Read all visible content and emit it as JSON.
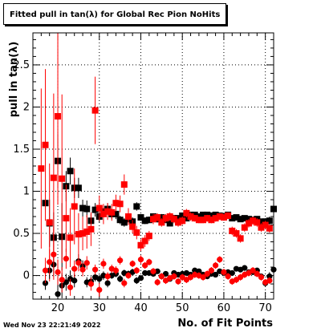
{
  "chart_data": {
    "type": "scatter",
    "title": "Fitted pull in tan(λ) for Global Rec Pion NoHits",
    "xlabel": "No. of Fit Points",
    "ylabel": "pull in tan(λ)",
    "xlim": [
      14,
      72
    ],
    "ylim": [
      -0.28,
      2.88
    ],
    "x_ticks": [
      20,
      30,
      40,
      50,
      60,
      70
    ],
    "y_ticks": [
      0,
      0.5,
      1,
      1.5,
      2,
      2.5
    ],
    "y_tick_labels": [
      "0",
      "0.5",
      "1",
      "1.5",
      "2",
      "2.5"
    ],
    "grid": true,
    "series": [
      {
        "marker": "square",
        "color": "#000000",
        "x": [
          17,
          18,
          19,
          20,
          21,
          22,
          23,
          24,
          25,
          26,
          27,
          28,
          29,
          30,
          31,
          32,
          33,
          34,
          35,
          36,
          37,
          38,
          39,
          40,
          41,
          42,
          43,
          44,
          45,
          46,
          47,
          48,
          49,
          50,
          51,
          52,
          53,
          54,
          55,
          56,
          57,
          58,
          59,
          60,
          61,
          62,
          63,
          64,
          65,
          66,
          67,
          68,
          69,
          70,
          71,
          72
        ],
        "y": [
          0.86,
          0.62,
          0.45,
          1.36,
          0.46,
          1.06,
          1.24,
          1.04,
          1.04,
          0.8,
          0.79,
          0.65,
          0.78,
          0.7,
          0.76,
          0.79,
          0.73,
          0.73,
          0.66,
          0.63,
          0.67,
          0.64,
          0.82,
          0.69,
          0.65,
          0.66,
          0.7,
          0.67,
          0.69,
          0.66,
          0.62,
          0.68,
          0.68,
          0.71,
          0.68,
          0.72,
          0.72,
          0.7,
          0.72,
          0.72,
          0.71,
          0.72,
          0.71,
          0.7,
          0.72,
          0.68,
          0.69,
          0.67,
          0.68,
          0.67,
          0.66,
          0.67,
          0.64,
          0.64,
          0.65,
          0.79
        ],
        "err": [
          0.1,
          0.28,
          0.3,
          0.32,
          0.4,
          0.18,
          0.16,
          0.12,
          0.12,
          0.1,
          0.1,
          0.08,
          0.08,
          0.07,
          0.07,
          0.07,
          0.06,
          0.06,
          0.05,
          0.05,
          0.05,
          0.05,
          0.05,
          0.04,
          0.04,
          0.04,
          0.04,
          0.04,
          0.04,
          0.03,
          0.03,
          0.03,
          0.03,
          0.03,
          0.03,
          0.03,
          0.03,
          0.03,
          0.03,
          0.03,
          0.03,
          0.03,
          0.03,
          0.03,
          0.03,
          0.03,
          0.03,
          0.03,
          0.03,
          0.03,
          0.03,
          0.03,
          0.03,
          0.04,
          0.05,
          0.08
        ]
      },
      {
        "marker": "square",
        "color": "#ff0000",
        "x": [
          16,
          17,
          18,
          19,
          20,
          21,
          22,
          23,
          24,
          25,
          26,
          27,
          28,
          29,
          30,
          31,
          32,
          33,
          34,
          35,
          36,
          37,
          38,
          39,
          40,
          41,
          42,
          43,
          44,
          45,
          46,
          47,
          48,
          49,
          50,
          51,
          52,
          53,
          54,
          55,
          56,
          57,
          58,
          59,
          60,
          61,
          62,
          63,
          64,
          65,
          66,
          67,
          68,
          69,
          70,
          71
        ],
        "y": [
          1.27,
          1.55,
          0.63,
          1.16,
          1.89,
          1.15,
          0.68,
          0.45,
          0.82,
          0.49,
          0.5,
          0.52,
          0.55,
          1.96,
          0.8,
          0.73,
          0.76,
          0.75,
          0.86,
          0.85,
          1.08,
          0.7,
          0.58,
          0.51,
          0.36,
          0.41,
          0.47,
          0.67,
          0.69,
          0.63,
          0.68,
          0.7,
          0.67,
          0.63,
          0.65,
          0.74,
          0.7,
          0.68,
          0.66,
          0.66,
          0.68,
          0.66,
          0.68,
          0.7,
          0.69,
          0.71,
          0.53,
          0.5,
          0.44,
          0.57,
          0.62,
          0.65,
          0.63,
          0.57,
          0.6,
          0.56
        ],
        "err": [
          0.95,
          0.9,
          0.7,
          1.0,
          1.05,
          1.0,
          0.4,
          0.35,
          0.45,
          0.25,
          0.2,
          0.2,
          0.2,
          0.4,
          0.15,
          0.12,
          0.1,
          0.1,
          0.1,
          0.1,
          0.12,
          0.1,
          0.08,
          0.08,
          0.07,
          0.07,
          0.06,
          0.06,
          0.05,
          0.05,
          0.05,
          0.05,
          0.05,
          0.05,
          0.05,
          0.05,
          0.05,
          0.04,
          0.04,
          0.04,
          0.04,
          0.04,
          0.04,
          0.04,
          0.04,
          0.04,
          0.05,
          0.05,
          0.05,
          0.05,
          0.05,
          0.05,
          0.05,
          0.05,
          0.05,
          0.05
        ]
      },
      {
        "marker": "circle",
        "color": "#000000",
        "x": [
          17,
          18,
          19,
          20,
          21,
          22,
          23,
          24,
          25,
          26,
          27,
          28,
          29,
          30,
          31,
          32,
          33,
          34,
          35,
          36,
          37,
          38,
          39,
          40,
          41,
          42,
          43,
          44,
          45,
          46,
          47,
          48,
          49,
          50,
          51,
          52,
          53,
          54,
          55,
          56,
          57,
          58,
          59,
          60,
          61,
          62,
          63,
          64,
          65,
          66,
          67,
          68,
          69,
          70,
          71,
          72
        ],
        "y": [
          -0.09,
          0.06,
          0.13,
          -0.22,
          -0.12,
          -0.08,
          -0.04,
          -0.06,
          0.17,
          0.11,
          -0.08,
          -0.07,
          -0.02,
          -0.04,
          0.0,
          -0.09,
          0.0,
          0.02,
          -0.04,
          0.03,
          0.02,
          0.04,
          -0.06,
          -0.03,
          0.03,
          0.03,
          0.02,
          0.05,
          -0.01,
          0.02,
          -0.04,
          0.03,
          0.01,
          0.02,
          0.03,
          0.01,
          0.06,
          0.05,
          0.01,
          -0.01,
          0.02,
          0.01,
          0.05,
          0.03,
          0.04,
          0.03,
          0.08,
          0.07,
          0.09,
          0.04,
          0.04,
          0.06,
          -0.01,
          -0.09,
          -0.01,
          0.07
        ],
        "err": [
          0.08,
          0.1,
          0.14,
          0.2,
          0.15,
          0.1,
          0.1,
          0.08,
          0.08,
          0.07,
          0.06,
          0.06,
          0.05,
          0.05,
          0.05,
          0.05,
          0.04,
          0.04,
          0.04,
          0.04,
          0.04,
          0.04,
          0.04,
          0.03,
          0.03,
          0.03,
          0.03,
          0.03,
          0.03,
          0.03,
          0.03,
          0.03,
          0.03,
          0.03,
          0.03,
          0.03,
          0.03,
          0.03,
          0.03,
          0.03,
          0.03,
          0.03,
          0.03,
          0.03,
          0.03,
          0.03,
          0.03,
          0.03,
          0.03,
          0.03,
          0.03,
          0.03,
          0.03,
          0.04,
          0.05,
          0.06
        ]
      },
      {
        "marker": "circle",
        "color": "#ff0000",
        "x": [
          17,
          18,
          19,
          20,
          21,
          22,
          23,
          24,
          25,
          26,
          27,
          28,
          29,
          30,
          31,
          32,
          33,
          34,
          35,
          36,
          37,
          38,
          39,
          40,
          41,
          42,
          43,
          44,
          45,
          46,
          47,
          48,
          49,
          50,
          51,
          52,
          53,
          54,
          55,
          56,
          57,
          58,
          59,
          60,
          61,
          62,
          63,
          64,
          65,
          66,
          67,
          68,
          69,
          70,
          71
        ],
        "y": [
          0.06,
          0.16,
          0.25,
          0.04,
          -0.05,
          0.2,
          -0.14,
          0.08,
          0.15,
          0.07,
          0.15,
          -0.1,
          0.07,
          -0.17,
          0.14,
          -0.01,
          0.08,
          0.06,
          0.18,
          -0.09,
          0.0,
          0.14,
          0.06,
          0.19,
          0.12,
          0.16,
          0.05,
          -0.08,
          -0.01,
          -0.06,
          -0.03,
          -0.01,
          -0.07,
          -0.02,
          -0.05,
          -0.02,
          0.01,
          0.0,
          -0.02,
          0.02,
          0.06,
          0.12,
          0.19,
          0.04,
          -0.01,
          -0.07,
          -0.05,
          -0.02,
          0.01,
          0.03,
          0.06,
          0.02,
          -0.02,
          -0.08,
          -0.06
        ],
        "err": [
          0.15,
          0.15,
          0.3,
          0.15,
          0.15,
          0.12,
          0.1,
          0.1,
          0.1,
          0.08,
          0.08,
          0.08,
          0.06,
          0.08,
          0.06,
          0.05,
          0.05,
          0.05,
          0.05,
          0.05,
          0.04,
          0.04,
          0.04,
          0.05,
          0.04,
          0.04,
          0.04,
          0.04,
          0.04,
          0.04,
          0.04,
          0.04,
          0.04,
          0.04,
          0.04,
          0.04,
          0.04,
          0.04,
          0.04,
          0.04,
          0.04,
          0.04,
          0.04,
          0.04,
          0.04,
          0.04,
          0.04,
          0.04,
          0.04,
          0.04,
          0.04,
          0.04,
          0.04,
          0.04,
          0.04
        ]
      }
    ]
  },
  "footer": {
    "timestamp": "Wed Nov 23 22:21:49 2022"
  }
}
